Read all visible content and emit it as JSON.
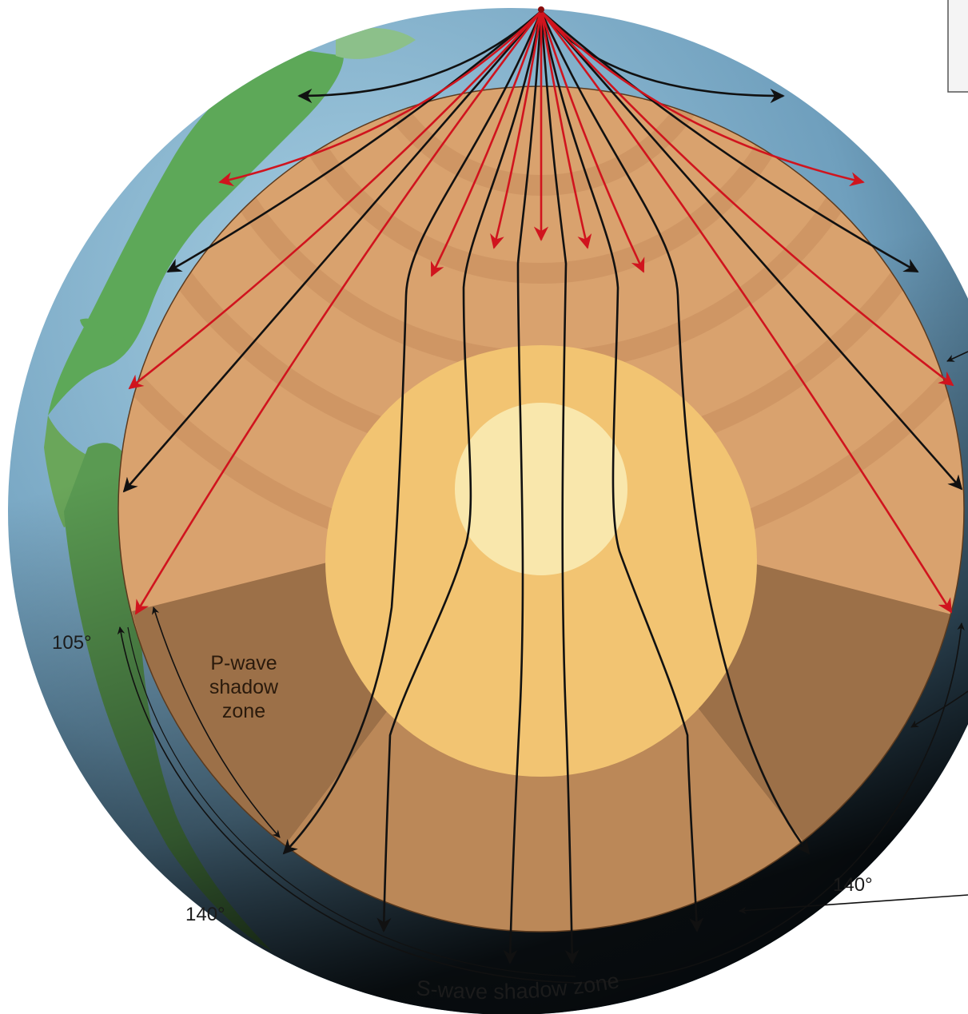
{
  "labels": {
    "angle_105_left": "105°",
    "angle_140_left": "140°",
    "angle_140_right": "140°",
    "p_shadow_line1": "P-wave",
    "p_shadow_line2": "shadow",
    "p_shadow_line3": "zone",
    "s_shadow": "S-wave shadow zone"
  },
  "colors": {
    "mantle": "#d9a26e",
    "mantle_ring_dark": "#c68d5c",
    "p_shadow_fill": "#9c7048",
    "s_shadow_fill": "#bb8858",
    "outer_core": "#f2c472",
    "inner_core": "#f9e7ac",
    "s_wave_ray": "#111111",
    "p_wave_ray": "#d0141e",
    "ocean": "#7fb3cf",
    "land": "#5fae58"
  },
  "icons": {
    "focus": "earthquake-focus-icon"
  }
}
